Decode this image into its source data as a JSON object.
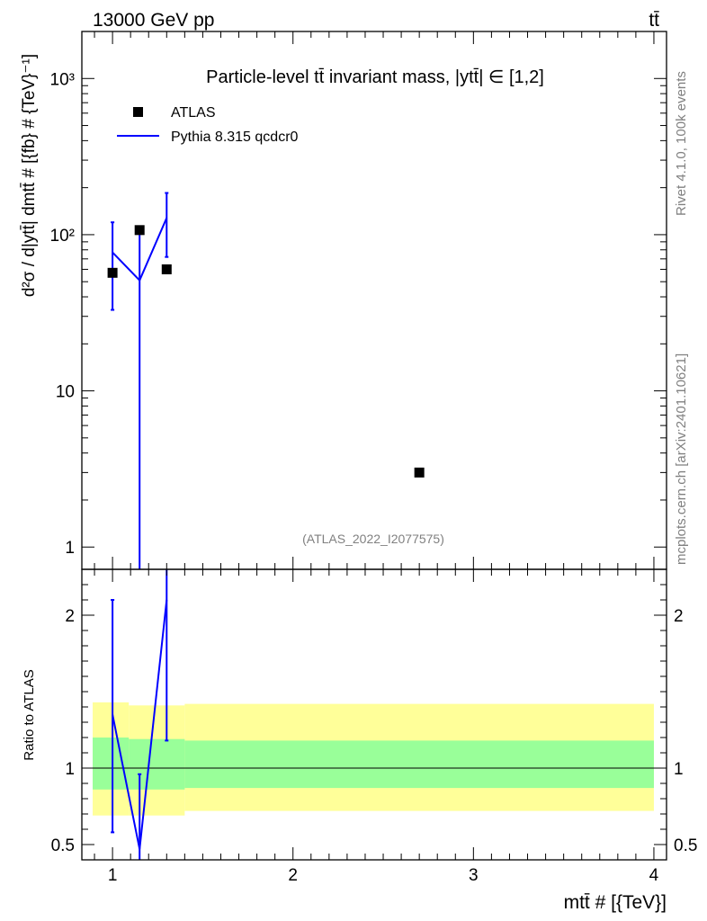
{
  "header": {
    "energy_label": "13000 GeV pp",
    "process_label": "tt̄"
  },
  "side_text": {
    "rivet": "Rivet 4.1.0,  100k events",
    "mcplots": "mcplots.cern.ch [arXiv:2401.10621]"
  },
  "chart_data": [
    {
      "type": "scatter",
      "panel": "main",
      "title": "Particle-level tt̄ invariant mass, |ytt̄| ∈ [1,2]",
      "analysis_tag": "(ATLAS_2022_I2077575)",
      "xlabel": "mtt̄ # [{TeV}]",
      "ylabel": "d²σ / d|ytt̄| dmtt̄ # [{fb} # {TeV}⁻¹]",
      "yscale": "log",
      "xlim": [
        0.83,
        4.07
      ],
      "ylim": [
        0.72,
        2000
      ],
      "yticks": [
        {
          "v": 1,
          "label": "1"
        },
        {
          "v": 10,
          "label": "10"
        },
        {
          "v": 100,
          "label": "10²"
        },
        {
          "v": 1000,
          "label": "10³"
        }
      ],
      "legend": [
        {
          "name": "ATLAS",
          "marker": "square",
          "color": "#000000"
        },
        {
          "name": "Pythia 8.315 qcdcr0",
          "marker": "line",
          "color": "#0000ff"
        }
      ],
      "series": [
        {
          "name": "ATLAS",
          "color": "#000000",
          "points": [
            {
              "x": 1.0,
              "y": 57
            },
            {
              "x": 1.15,
              "y": 107
            },
            {
              "x": 1.3,
              "y": 60
            },
            {
              "x": 2.7,
              "y": 3
            }
          ]
        },
        {
          "name": "Pythia 8.315 qcdcr0",
          "color": "#0000ff",
          "points": [
            {
              "x": 1.0,
              "y": 77,
              "ylo": 33,
              "yhi": 120
            },
            {
              "x": 1.15,
              "y": 51,
              "ylo": 0.5,
              "yhi": 102
            },
            {
              "x": 1.3,
              "y": 128,
              "ylo": 72,
              "yhi": 185
            }
          ]
        }
      ]
    },
    {
      "type": "line",
      "panel": "ratio",
      "ylabel": "Ratio to ATLAS",
      "xlim": [
        0.83,
        4.07
      ],
      "ylim": [
        0.4,
        2.3
      ],
      "xticks": [
        1,
        2,
        3,
        4
      ],
      "yticks": [
        0.5,
        1,
        2
      ],
      "reference_line": 1,
      "bands": {
        "bins": [
          {
            "xlo": 0.89,
            "xhi": 1.09,
            "yellow": [
              0.69,
              1.43
            ],
            "green": [
              0.86,
              1.2
            ]
          },
          {
            "xlo": 1.09,
            "xhi": 1.4,
            "yellow": [
              0.69,
              1.41
            ],
            "green": [
              0.86,
              1.19
            ]
          },
          {
            "xlo": 1.4,
            "xhi": 4.0,
            "yellow": [
              0.72,
              1.42
            ],
            "green": [
              0.87,
              1.18
            ]
          }
        ],
        "yellow_color": "#ffff99",
        "green_color": "#99ff99"
      },
      "series": [
        {
          "name": "Pythia 8.315 qcdcr0",
          "color": "#0000ff",
          "points": [
            {
              "x": 1.0,
              "y": 1.35,
              "ylo": 0.58,
              "yhi": 2.1
            },
            {
              "x": 1.15,
              "y": 0.47,
              "ylo": 0.38,
              "yhi": 0.96
            },
            {
              "x": 1.3,
              "y": 2.1,
              "ylo": 1.18,
              "yhi": 2.4
            }
          ]
        }
      ]
    }
  ]
}
